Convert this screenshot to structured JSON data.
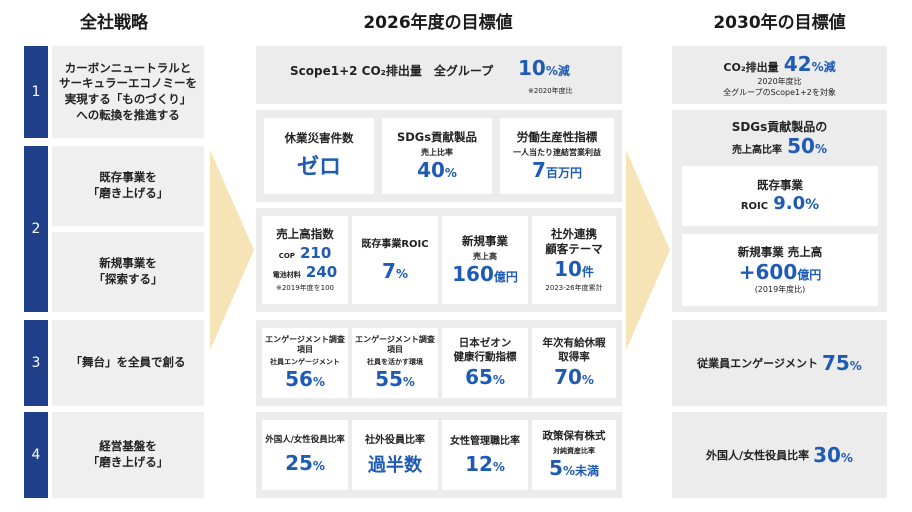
{
  "headers": {
    "left": "全社戦略",
    "mid": "2026年度の目標値",
    "right": "2030年の目標値"
  },
  "strategies": [
    {
      "num": "1",
      "items": [
        "カーボンニュートラルと\nサーキュラーエコノミーを\n実現する「ものづくり」\nへの転換を推進する"
      ]
    },
    {
      "num": "2",
      "items": [
        "既存事業を\n「磨き上げる」",
        "新規事業を\n「探索する」"
      ]
    },
    {
      "num": "3",
      "items": [
        "「舞台」を全員で創る"
      ]
    },
    {
      "num": "4",
      "items": [
        "経営基盤を\n「磨き上げる」"
      ]
    }
  ],
  "row1": {
    "label": "Scope1+2 CO₂排出量　全グループ",
    "value": "10",
    "unit": "%減",
    "note": "※2020年度比"
  },
  "row2": [
    {
      "title": "休業災害件数",
      "value": "ゼロ",
      "unit": ""
    },
    {
      "title": "SDGs貢献製品",
      "sub": "売上比率",
      "value": "40",
      "unit": "%"
    },
    {
      "title": "労働生産性指標",
      "sub": "一人当たり連結営業利益",
      "value": "7",
      "unit": "百万円"
    }
  ],
  "row2b": {
    "salesIndex": {
      "title": "売上高指数",
      "l1": "COP",
      "v1": "210",
      "l2": "電池材料",
      "v2": "240",
      "note": "※2019年度を100"
    },
    "roic": {
      "title": "既存事業ROIC",
      "value": "7",
      "unit": "%"
    },
    "newBiz": {
      "title": "新規事業",
      "sub": "売上高",
      "value": "160",
      "unit": "億円"
    },
    "collab": {
      "title": "社外連携\n顧客テーマ",
      "value": "10",
      "unit": "件",
      "note": "2023-26年度累計"
    }
  },
  "row3": [
    {
      "title": "エンゲージメント調査項目",
      "sub": "社員エンゲージメント",
      "value": "56",
      "unit": "%"
    },
    {
      "title": "エンゲージメント調査項目",
      "sub": "社員を活かす環境",
      "value": "55",
      "unit": "%"
    },
    {
      "title": "日本ゼオン\n健康行動指標",
      "value": "65",
      "unit": "%"
    },
    {
      "title": "年次有給休暇\n取得率",
      "value": "70",
      "unit": "%"
    }
  ],
  "row4": [
    {
      "title": "外国人/女性役員比率",
      "value": "25",
      "unit": "%"
    },
    {
      "title": "社外役員比率",
      "value": "過半数",
      "unit": ""
    },
    {
      "title": "女性管理職比率",
      "value": "12",
      "unit": "%"
    },
    {
      "title": "政策保有株式",
      "sub": "対純資産比率",
      "value": "5",
      "unit": "%未満"
    }
  ],
  "r2030": {
    "co2": {
      "label": "CO₂排出量",
      "value": "42",
      "unit": "%減",
      "note1": "2020年度比",
      "note2": "全グループのScope1+2を対象"
    },
    "sdgs": {
      "title": "SDGs貢献製品の",
      "label": "売上高比率",
      "value": "50",
      "unit": "%"
    },
    "roic": {
      "title": "既存事業",
      "label": "ROIC",
      "value": "9.0",
      "unit": "%"
    },
    "newBiz": {
      "title": "新規事業 売上高",
      "value": "+600",
      "unit": "億円",
      "note": "(2019年度比)"
    },
    "engagement": {
      "label": "従業員エンゲージメント",
      "value": "75",
      "unit": "%"
    },
    "officers": {
      "label": "外国人/女性役員比率",
      "value": "30",
      "unit": "%"
    }
  }
}
